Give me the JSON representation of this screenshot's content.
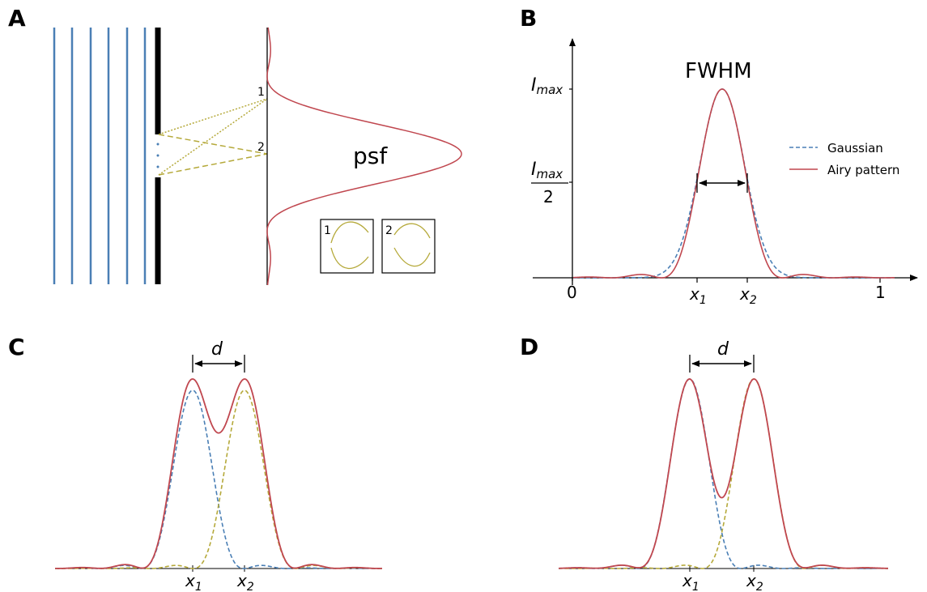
{
  "panels": {
    "a": {
      "letter": "A",
      "psf_label": "psf",
      "slit1": "1",
      "slit2": "2",
      "inset1": "1",
      "inset2": "2"
    },
    "b": {
      "letter": "B",
      "fwhm": "FWHM",
      "imax": "I",
      "imax_sub": "max",
      "half_num": "I",
      "half_sub": "max",
      "half_den": "2",
      "tick0": "0",
      "tick1": "1",
      "x1": "x",
      "x1_sub": "1",
      "x2": "x",
      "x2_sub": "2",
      "legend": [
        {
          "label": "Gaussian",
          "color": "#4a7fb5",
          "style": "dashed"
        },
        {
          "label": "Airy pattern",
          "color": "#c0474f",
          "style": "solid"
        }
      ]
    },
    "c": {
      "letter": "C",
      "d": "d",
      "x1": "x",
      "x1_sub": "1",
      "x2": "x",
      "x2_sub": "2"
    },
    "d": {
      "letter": "D",
      "d": "d",
      "x1": "x",
      "x1_sub": "1",
      "x2": "x",
      "x2_sub": "2"
    }
  },
  "colors": {
    "blue": "#4a7fb5",
    "red": "#c0474f",
    "olive": "#b5a93a",
    "black": "#000000"
  }
}
